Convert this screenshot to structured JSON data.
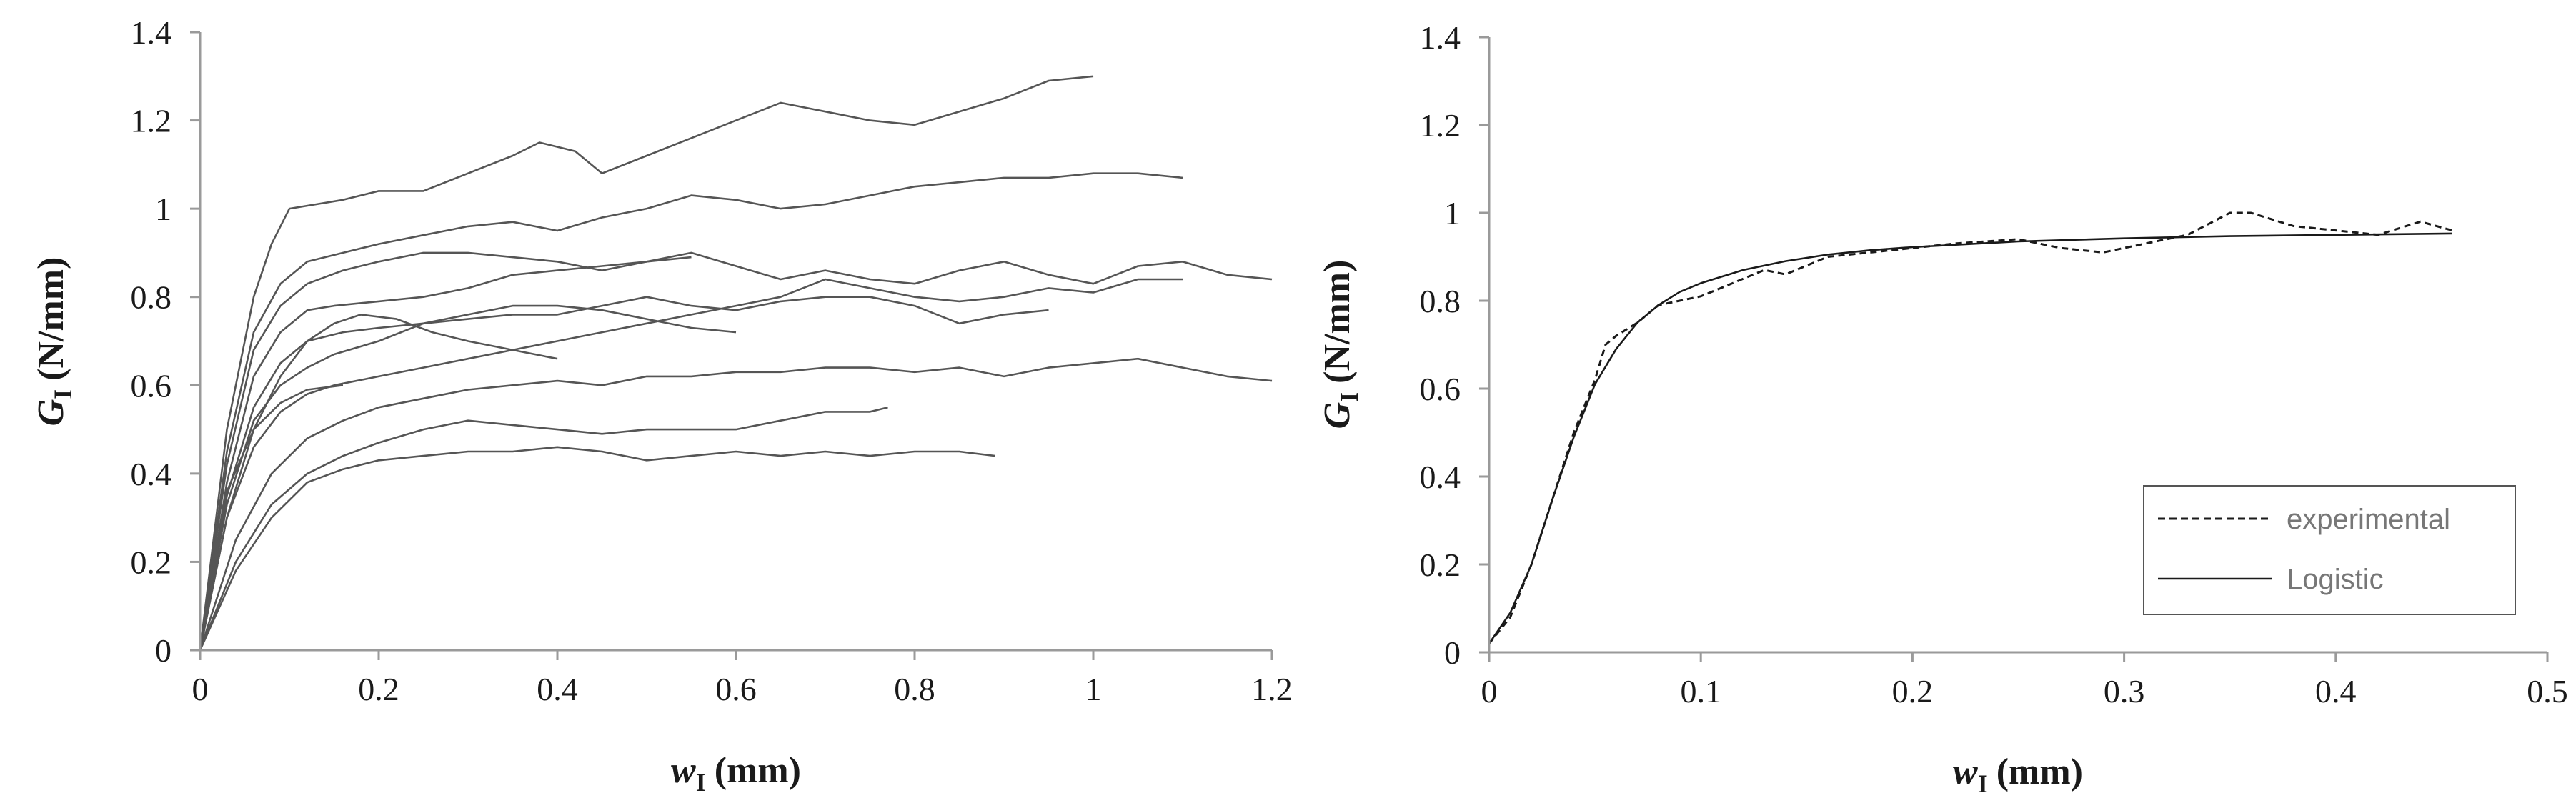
{
  "chart_data": [
    {
      "type": "line",
      "xlabel": {
        "main": "w",
        "sub": "I",
        "unit": "(mm)"
      },
      "ylabel": {
        "main": "G",
        "sub": "I",
        "unit": "(N/mm)"
      },
      "xlim": [
        0,
        1.2
      ],
      "ylim": [
        0,
        1.4
      ],
      "xticks": [
        "0",
        "0.2",
        "0.4",
        "0.6",
        "0.8",
        "1",
        "1.2"
      ],
      "yticks": [
        "0",
        "0.2",
        "0.4",
        "0.6",
        "0.8",
        "1",
        "1.2",
        "1.4"
      ],
      "grid": false,
      "line_color": "#555555",
      "series": [
        {
          "style": "solid",
          "x": [
            0,
            0.03,
            0.06,
            0.08,
            0.1,
            0.13,
            0.16,
            0.2,
            0.25,
            0.3,
            0.35,
            0.38,
            0.42,
            0.45,
            0.5,
            0.55,
            0.6,
            0.65,
            0.7,
            0.75,
            0.8,
            0.85,
            0.9,
            0.95,
            1.0
          ],
          "y": [
            0,
            0.5,
            0.8,
            0.92,
            1.0,
            1.01,
            1.02,
            1.04,
            1.04,
            1.08,
            1.12,
            1.15,
            1.13,
            1.08,
            1.12,
            1.16,
            1.2,
            1.24,
            1.22,
            1.2,
            1.19,
            1.22,
            1.25,
            1.29,
            1.3
          ]
        },
        {
          "style": "solid",
          "x": [
            0,
            0.03,
            0.06,
            0.09,
            0.12,
            0.16,
            0.2,
            0.25,
            0.3,
            0.35,
            0.4,
            0.45,
            0.5,
            0.55,
            0.6,
            0.65,
            0.7,
            0.75,
            0.8,
            0.85,
            0.9,
            0.95,
            1.0,
            1.05,
            1.1
          ],
          "y": [
            0,
            0.45,
            0.72,
            0.83,
            0.88,
            0.9,
            0.92,
            0.94,
            0.96,
            0.97,
            0.95,
            0.98,
            1.0,
            1.03,
            1.02,
            1.0,
            1.01,
            1.03,
            1.05,
            1.06,
            1.07,
            1.07,
            1.08,
            1.08,
            1.07
          ]
        },
        {
          "style": "solid",
          "x": [
            0,
            0.03,
            0.06,
            0.09,
            0.12,
            0.16,
            0.2,
            0.25,
            0.3,
            0.35,
            0.4,
            0.45,
            0.5,
            0.55,
            0.6,
            0.65,
            0.7,
            0.75,
            0.8,
            0.85,
            0.9,
            0.95,
            1.0,
            1.05,
            1.1,
            1.15,
            1.2
          ],
          "y": [
            0,
            0.42,
            0.68,
            0.78,
            0.83,
            0.86,
            0.88,
            0.9,
            0.9,
            0.89,
            0.88,
            0.86,
            0.88,
            0.9,
            0.87,
            0.84,
            0.86,
            0.84,
            0.83,
            0.86,
            0.88,
            0.85,
            0.83,
            0.87,
            0.88,
            0.85,
            0.84
          ]
        },
        {
          "style": "solid",
          "x": [
            0,
            0.03,
            0.06,
            0.09,
            0.12,
            0.15,
            0.2,
            0.25,
            0.3,
            0.35,
            0.4,
            0.45,
            0.5,
            0.55
          ],
          "y": [
            0,
            0.38,
            0.62,
            0.72,
            0.77,
            0.78,
            0.79,
            0.8,
            0.82,
            0.85,
            0.86,
            0.87,
            0.88,
            0.89
          ]
        },
        {
          "style": "solid",
          "x": [
            0,
            0.03,
            0.06,
            0.09,
            0.12,
            0.16,
            0.2,
            0.25,
            0.3,
            0.35,
            0.4,
            0.45,
            0.5,
            0.55,
            0.6,
            0.65,
            0.7,
            0.75,
            0.8,
            0.85,
            0.9,
            0.95
          ],
          "y": [
            0,
            0.35,
            0.55,
            0.65,
            0.7,
            0.72,
            0.73,
            0.74,
            0.75,
            0.76,
            0.76,
            0.78,
            0.8,
            0.78,
            0.77,
            0.79,
            0.8,
            0.8,
            0.78,
            0.74,
            0.76,
            0.77
          ]
        },
        {
          "style": "solid",
          "x": [
            0,
            0.03,
            0.06,
            0.09,
            0.12,
            0.15,
            0.2,
            0.25,
            0.3,
            0.35,
            0.4,
            0.45,
            0.5,
            0.55,
            0.6
          ],
          "y": [
            0,
            0.33,
            0.52,
            0.6,
            0.64,
            0.67,
            0.7,
            0.74,
            0.76,
            0.78,
            0.78,
            0.77,
            0.75,
            0.73,
            0.72
          ]
        },
        {
          "style": "solid",
          "x": [
            0,
            0.03,
            0.06,
            0.09,
            0.12,
            0.15,
            0.2,
            0.25,
            0.3,
            0.35,
            0.4,
            0.45,
            0.5,
            0.55,
            0.6,
            0.65,
            0.7,
            0.75,
            0.8,
            0.85,
            0.9,
            0.95,
            1.0,
            1.05,
            1.1
          ],
          "y": [
            0,
            0.3,
            0.46,
            0.54,
            0.58,
            0.6,
            0.62,
            0.64,
            0.66,
            0.68,
            0.7,
            0.72,
            0.74,
            0.76,
            0.78,
            0.8,
            0.84,
            0.82,
            0.8,
            0.79,
            0.8,
            0.82,
            0.81,
            0.84,
            0.84
          ]
        },
        {
          "style": "solid",
          "x": [
            0,
            0.03,
            0.06,
            0.09,
            0.12,
            0.15,
            0.18,
            0.22,
            0.26,
            0.3,
            0.35,
            0.4
          ],
          "y": [
            0,
            0.3,
            0.5,
            0.62,
            0.7,
            0.74,
            0.76,
            0.75,
            0.72,
            0.7,
            0.68,
            0.66
          ]
        },
        {
          "style": "solid",
          "x": [
            0,
            0.03,
            0.06,
            0.09,
            0.12,
            0.16
          ],
          "y": [
            0,
            0.36,
            0.5,
            0.56,
            0.59,
            0.6
          ]
        },
        {
          "style": "solid",
          "x": [
            0,
            0.04,
            0.08,
            0.12,
            0.16,
            0.2,
            0.25,
            0.3,
            0.35,
            0.4,
            0.45,
            0.5,
            0.55,
            0.6,
            0.65,
            0.7,
            0.75,
            0.8,
            0.85,
            0.9,
            0.95,
            1.0,
            1.05,
            1.1,
            1.15,
            1.2
          ],
          "y": [
            0,
            0.25,
            0.4,
            0.48,
            0.52,
            0.55,
            0.57,
            0.59,
            0.6,
            0.61,
            0.6,
            0.62,
            0.62,
            0.63,
            0.63,
            0.64,
            0.64,
            0.63,
            0.64,
            0.62,
            0.64,
            0.65,
            0.66,
            0.64,
            0.62,
            0.61
          ]
        },
        {
          "style": "solid",
          "x": [
            0,
            0.04,
            0.08,
            0.12,
            0.16,
            0.2,
            0.25,
            0.3,
            0.35,
            0.4,
            0.45,
            0.5,
            0.55,
            0.6,
            0.65,
            0.7,
            0.75,
            0.77
          ],
          "y": [
            0,
            0.2,
            0.33,
            0.4,
            0.44,
            0.47,
            0.5,
            0.52,
            0.51,
            0.5,
            0.49,
            0.5,
            0.5,
            0.5,
            0.52,
            0.54,
            0.54,
            0.55
          ]
        },
        {
          "style": "solid",
          "x": [
            0,
            0.04,
            0.08,
            0.12,
            0.16,
            0.2,
            0.25,
            0.3,
            0.35,
            0.4,
            0.45,
            0.5,
            0.55,
            0.6,
            0.65,
            0.7,
            0.75,
            0.8,
            0.85,
            0.89
          ],
          "y": [
            0,
            0.18,
            0.3,
            0.38,
            0.41,
            0.43,
            0.44,
            0.45,
            0.45,
            0.46,
            0.45,
            0.43,
            0.44,
            0.45,
            0.44,
            0.45,
            0.44,
            0.45,
            0.45,
            0.44
          ]
        }
      ]
    },
    {
      "type": "line",
      "xlabel": {
        "main": "w",
        "sub": "I",
        "unit": "(mm)"
      },
      "ylabel": {
        "main": "G",
        "sub": "I",
        "unit": "(N/mm)"
      },
      "xlim": [
        0,
        0.5
      ],
      "ylim": [
        0,
        1.4
      ],
      "xticks": [
        "0",
        "0.1",
        "0.2",
        "0.3",
        "0.4",
        "0.5"
      ],
      "yticks": [
        "0",
        "0.2",
        "0.4",
        "0.6",
        "0.8",
        "1",
        "1.2",
        "1.4"
      ],
      "grid": false,
      "line_color": "#1a1a1a",
      "legend": {
        "position": "lower-right",
        "entries": [
          {
            "label": "experimental",
            "style": "dashed"
          },
          {
            "label": "Logistic",
            "style": "solid"
          }
        ]
      },
      "series": [
        {
          "style": "dashed",
          "x": [
            0,
            0.01,
            0.02,
            0.03,
            0.04,
            0.05,
            0.055,
            0.06,
            0.07,
            0.08,
            0.09,
            0.1,
            0.11,
            0.12,
            0.13,
            0.14,
            0.15,
            0.16,
            0.18,
            0.2,
            0.22,
            0.25,
            0.27,
            0.29,
            0.31,
            0.33,
            0.35,
            0.36,
            0.38,
            0.4,
            0.42,
            0.44,
            0.455
          ],
          "y": [
            0.02,
            0.08,
            0.2,
            0.35,
            0.5,
            0.62,
            0.7,
            0.72,
            0.75,
            0.79,
            0.8,
            0.81,
            0.83,
            0.85,
            0.87,
            0.86,
            0.88,
            0.9,
            0.91,
            0.92,
            0.93,
            0.94,
            0.92,
            0.91,
            0.93,
            0.95,
            1.0,
            1.0,
            0.97,
            0.96,
            0.95,
            0.98,
            0.96
          ]
        },
        {
          "style": "solid",
          "x": [
            0,
            0.01,
            0.02,
            0.03,
            0.04,
            0.05,
            0.06,
            0.07,
            0.08,
            0.09,
            0.1,
            0.12,
            0.14,
            0.16,
            0.18,
            0.2,
            0.25,
            0.3,
            0.35,
            0.4,
            0.455
          ],
          "y": [
            0.02,
            0.09,
            0.2,
            0.35,
            0.49,
            0.61,
            0.69,
            0.75,
            0.79,
            0.82,
            0.84,
            0.87,
            0.89,
            0.905,
            0.915,
            0.922,
            0.935,
            0.942,
            0.947,
            0.95,
            0.953
          ]
        }
      ]
    }
  ]
}
